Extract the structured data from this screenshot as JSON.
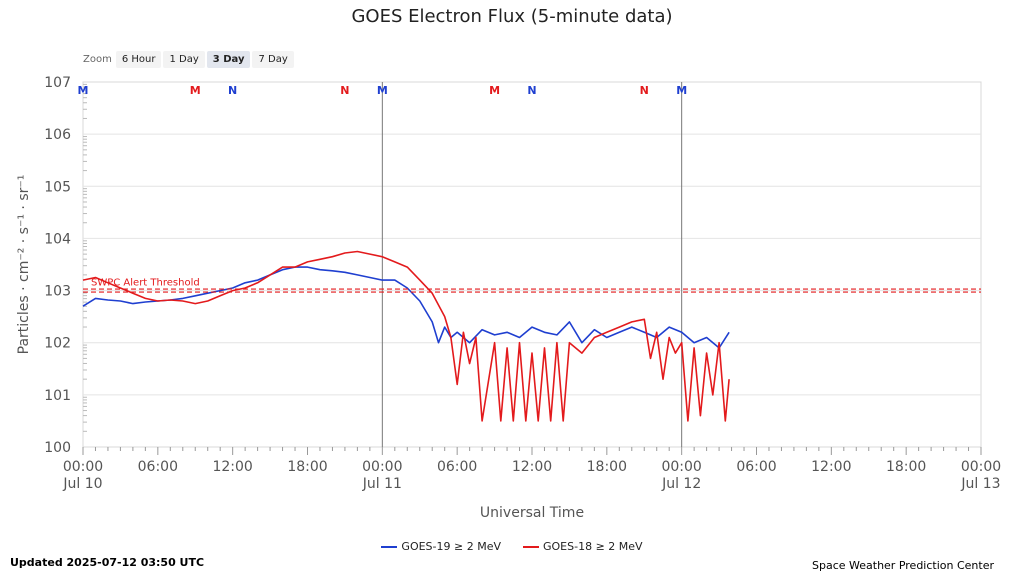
{
  "zoom": {
    "label": "Zoom",
    "buttons": [
      "6 Hour",
      "1 Day",
      "3 Day",
      "7 Day"
    ],
    "selected": "3 Day"
  },
  "footer": {
    "updated": "Updated 2025-07-12 03:50 UTC",
    "credit": "Space Weather Prediction Center"
  },
  "chart_data": {
    "type": "line",
    "title": "GOES Electron Flux (5-minute data)",
    "xlabel": "Universal Time",
    "ylabel": "Particles · cm⁻² · s⁻¹ · sr⁻¹",
    "y_scale": "log",
    "ylim_exponent": [
      0,
      7
    ],
    "xlim_hours": [
      0,
      72
    ],
    "y_tick_labels": [
      "100",
      "101",
      "102",
      "103",
      "104",
      "105",
      "106",
      "107"
    ],
    "x_ticks": [
      {
        "time": "00:00",
        "date": "Jul 10"
      },
      {
        "time": "06:00",
        "date": ""
      },
      {
        "time": "12:00",
        "date": ""
      },
      {
        "time": "18:00",
        "date": ""
      },
      {
        "time": "00:00",
        "date": "Jul 11"
      },
      {
        "time": "06:00",
        "date": ""
      },
      {
        "time": "12:00",
        "date": ""
      },
      {
        "time": "18:00",
        "date": ""
      },
      {
        "time": "00:00",
        "date": "Jul 12"
      },
      {
        "time": "06:00",
        "date": ""
      },
      {
        "time": "12:00",
        "date": ""
      },
      {
        "time": "18:00",
        "date": ""
      },
      {
        "time": "00:00",
        "date": "Jul 13"
      }
    ],
    "grid": true,
    "legend_position": "bottom-center",
    "threshold": {
      "label": "SWPC Alert Threshold",
      "exponent": 3.0,
      "color": "#e31a1c"
    },
    "day_markers_hours": [
      24,
      48
    ],
    "mnm_markers": [
      {
        "label": "M",
        "hour": 0,
        "color": "#1f3fd0"
      },
      {
        "label": "M",
        "hour": 9,
        "color": "#e31a1c"
      },
      {
        "label": "N",
        "hour": 12,
        "color": "#1f3fd0"
      },
      {
        "label": "N",
        "hour": 21,
        "color": "#e31a1c"
      },
      {
        "label": "M",
        "hour": 24,
        "color": "#1f3fd0"
      },
      {
        "label": "M",
        "hour": 33,
        "color": "#e31a1c"
      },
      {
        "label": "N",
        "hour": 36,
        "color": "#1f3fd0"
      },
      {
        "label": "N",
        "hour": 45,
        "color": "#e31a1c"
      },
      {
        "label": "M",
        "hour": 48,
        "color": "#1f3fd0"
      }
    ],
    "series": [
      {
        "name": "GOES-19 ≥ 2 MeV",
        "color": "#1f3fd0",
        "hours": [
          0,
          1,
          2,
          3,
          4,
          5,
          6,
          7,
          8,
          9,
          10,
          11,
          12,
          13,
          14,
          15,
          16,
          17,
          18,
          19,
          20,
          21,
          22,
          23,
          24,
          25,
          26,
          27,
          28,
          28.5,
          29,
          29.5,
          30,
          31,
          32,
          33,
          34,
          35,
          36,
          37,
          38,
          39,
          40,
          41,
          42,
          43,
          44,
          45,
          46,
          47,
          48,
          49,
          50,
          51,
          51.8
        ],
        "log_values": [
          2.7,
          2.85,
          2.82,
          2.8,
          2.75,
          2.78,
          2.8,
          2.82,
          2.85,
          2.9,
          2.95,
          3.0,
          3.05,
          3.15,
          3.2,
          3.3,
          3.4,
          3.45,
          3.45,
          3.4,
          3.38,
          3.35,
          3.3,
          3.25,
          3.2,
          3.2,
          3.05,
          2.8,
          2.4,
          2.0,
          2.3,
          2.1,
          2.2,
          2.0,
          2.25,
          2.15,
          2.2,
          2.1,
          2.3,
          2.2,
          2.15,
          2.4,
          2.0,
          2.25,
          2.1,
          2.2,
          2.3,
          2.2,
          2.1,
          2.3,
          2.2,
          2.0,
          2.1,
          1.9,
          2.2
        ]
      },
      {
        "name": "GOES-18 ≥ 2 MeV",
        "color": "#e31a1c",
        "hours": [
          0,
          1,
          2,
          3,
          4,
          5,
          6,
          7,
          8,
          9,
          10,
          11,
          12,
          13,
          14,
          15,
          16,
          17,
          18,
          19,
          20,
          21,
          22,
          23,
          24,
          25,
          26,
          27,
          28,
          29,
          29.5,
          30,
          30.5,
          31,
          31.5,
          32,
          33,
          33.5,
          34,
          34.5,
          35,
          35.5,
          36,
          36.5,
          37,
          37.5,
          38,
          38.5,
          39,
          40,
          41,
          42,
          43,
          44,
          45,
          45.5,
          46,
          46.5,
          47,
          47.5,
          48,
          48.5,
          49,
          49.5,
          50,
          50.5,
          51,
          51.5,
          51.8
        ],
        "log_values": [
          3.2,
          3.25,
          3.15,
          3.05,
          2.95,
          2.85,
          2.8,
          2.82,
          2.8,
          2.75,
          2.8,
          2.9,
          3.0,
          3.05,
          3.15,
          3.3,
          3.45,
          3.45,
          3.55,
          3.6,
          3.65,
          3.72,
          3.75,
          3.7,
          3.65,
          3.55,
          3.45,
          3.2,
          2.95,
          2.5,
          2.1,
          1.2,
          2.2,
          1.6,
          2.1,
          0.5,
          2.0,
          0.5,
          1.9,
          0.5,
          2.0,
          0.5,
          1.8,
          0.5,
          1.9,
          0.5,
          2.0,
          0.5,
          2.0,
          1.8,
          2.1,
          2.2,
          2.3,
          2.4,
          2.45,
          1.7,
          2.2,
          1.3,
          2.1,
          1.8,
          2.0,
          0.5,
          1.9,
          0.6,
          1.8,
          1.0,
          2.0,
          0.5,
          1.3
        ]
      }
    ]
  }
}
